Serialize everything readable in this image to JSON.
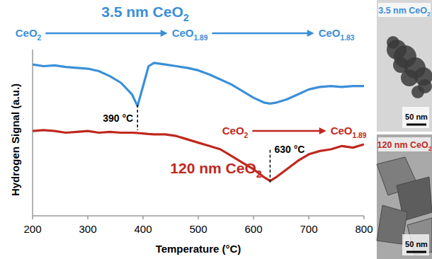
{
  "chart_data": {
    "type": "line",
    "x_label": "Temperature (°C)",
    "y_label": "Hydrogen Signal (a.u.)",
    "x": [
      200,
      220,
      240,
      260,
      280,
      300,
      320,
      340,
      360,
      380,
      390,
      400,
      410,
      420,
      440,
      460,
      480,
      500,
      520,
      540,
      560,
      580,
      600,
      620,
      630,
      640,
      660,
      680,
      700,
      720,
      740,
      760,
      780,
      800
    ],
    "series": [
      {
        "name": "3.5 nm CeO2",
        "color": "#3b8fd8",
        "phases": [
          "CeO2",
          "CeO1.89",
          "CeO1.83"
        ],
        "values": [
          9.1,
          9.0,
          9.05,
          8.95,
          8.9,
          8.85,
          8.7,
          8.4,
          8.0,
          7.3,
          6.6,
          7.8,
          9.0,
          9.2,
          9.1,
          9.0,
          8.9,
          8.75,
          8.5,
          8.2,
          7.9,
          7.5,
          7.1,
          6.8,
          6.75,
          6.8,
          7.0,
          7.3,
          7.6,
          7.75,
          7.8,
          7.75,
          7.8,
          7.8
        ]
      },
      {
        "name": "120 nm CeO2",
        "color": "#c0281e",
        "phases": [
          "CeO2",
          "CeO1.89"
        ],
        "values": [
          5.1,
          5.15,
          5.1,
          5.0,
          5.05,
          5.1,
          5.0,
          5.05,
          5.0,
          5.0,
          4.98,
          4.95,
          4.92,
          4.9,
          4.9,
          4.8,
          4.6,
          4.4,
          4.2,
          4.0,
          3.6,
          3.2,
          2.8,
          2.3,
          2.1,
          2.3,
          2.8,
          3.3,
          3.7,
          3.9,
          4.0,
          4.2,
          4.1,
          4.3
        ]
      }
    ],
    "annotations": [
      {
        "x": 390,
        "y": 6.6,
        "label": "390 °C"
      },
      {
        "x": 630,
        "y": 2.1,
        "label": "630 °C"
      }
    ],
    "xlim": [
      200,
      800
    ],
    "xticks": [
      200,
      300,
      400,
      500,
      600,
      700,
      800
    ],
    "ylim": [
      0,
      10
    ],
    "tick_labels": "x",
    "grid": false
  },
  "panels": [
    {
      "label": "3.5 nm CeO2",
      "scale_bar": "50 nm"
    },
    {
      "label": "120 nm CeO2",
      "scale_bar": "50 nm"
    }
  ]
}
